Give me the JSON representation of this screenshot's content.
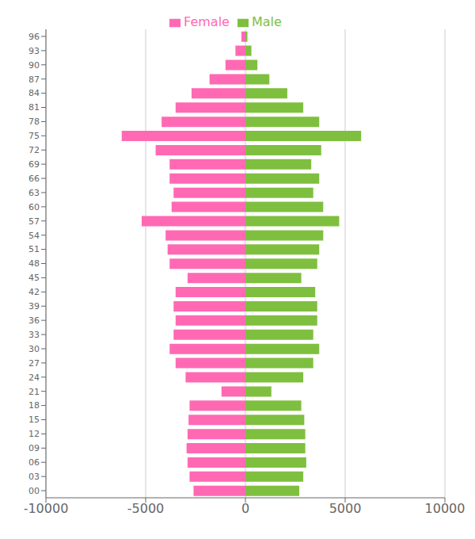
{
  "chart_data": {
    "type": "bar",
    "orientation": "horizontal",
    "stacked": true,
    "grid": true,
    "legend": "top",
    "categories": [
      "00",
      "03",
      "06",
      "09",
      "12",
      "15",
      "18",
      "21",
      "24",
      "27",
      "30",
      "33",
      "36",
      "39",
      "42",
      "45",
      "48",
      "51",
      "54",
      "57",
      "60",
      "63",
      "66",
      "69",
      "72",
      "75",
      "78",
      "81",
      "84",
      "87",
      "90",
      "93",
      "96"
    ],
    "series": [
      {
        "name": "Female",
        "color": "#ff69b4",
        "values": [
          -2600,
          -2800,
          -2900,
          -2950,
          -2900,
          -2850,
          -2800,
          -1200,
          -3000,
          -3500,
          -3800,
          -3600,
          -3500,
          -3600,
          -3500,
          -2900,
          -3800,
          -3900,
          -4000,
          -5200,
          -3700,
          -3600,
          -3800,
          -3800,
          -4500,
          -6200,
          -4200,
          -3500,
          -2700,
          -1800,
          -1000,
          -500,
          -200
        ]
      },
      {
        "name": "Male",
        "color": "#7fbf3f",
        "values": [
          2700,
          2900,
          3050,
          3000,
          3000,
          2950,
          2800,
          1300,
          2900,
          3400,
          3700,
          3400,
          3600,
          3600,
          3500,
          2800,
          3600,
          3700,
          3900,
          4700,
          3900,
          3400,
          3700,
          3300,
          3800,
          5800,
          3700,
          2900,
          2100,
          1200,
          600,
          300,
          100
        ]
      }
    ],
    "xlim": [
      -10000,
      10000
    ],
    "xticks": [
      -10000,
      -5000,
      0,
      5000,
      10000
    ]
  }
}
